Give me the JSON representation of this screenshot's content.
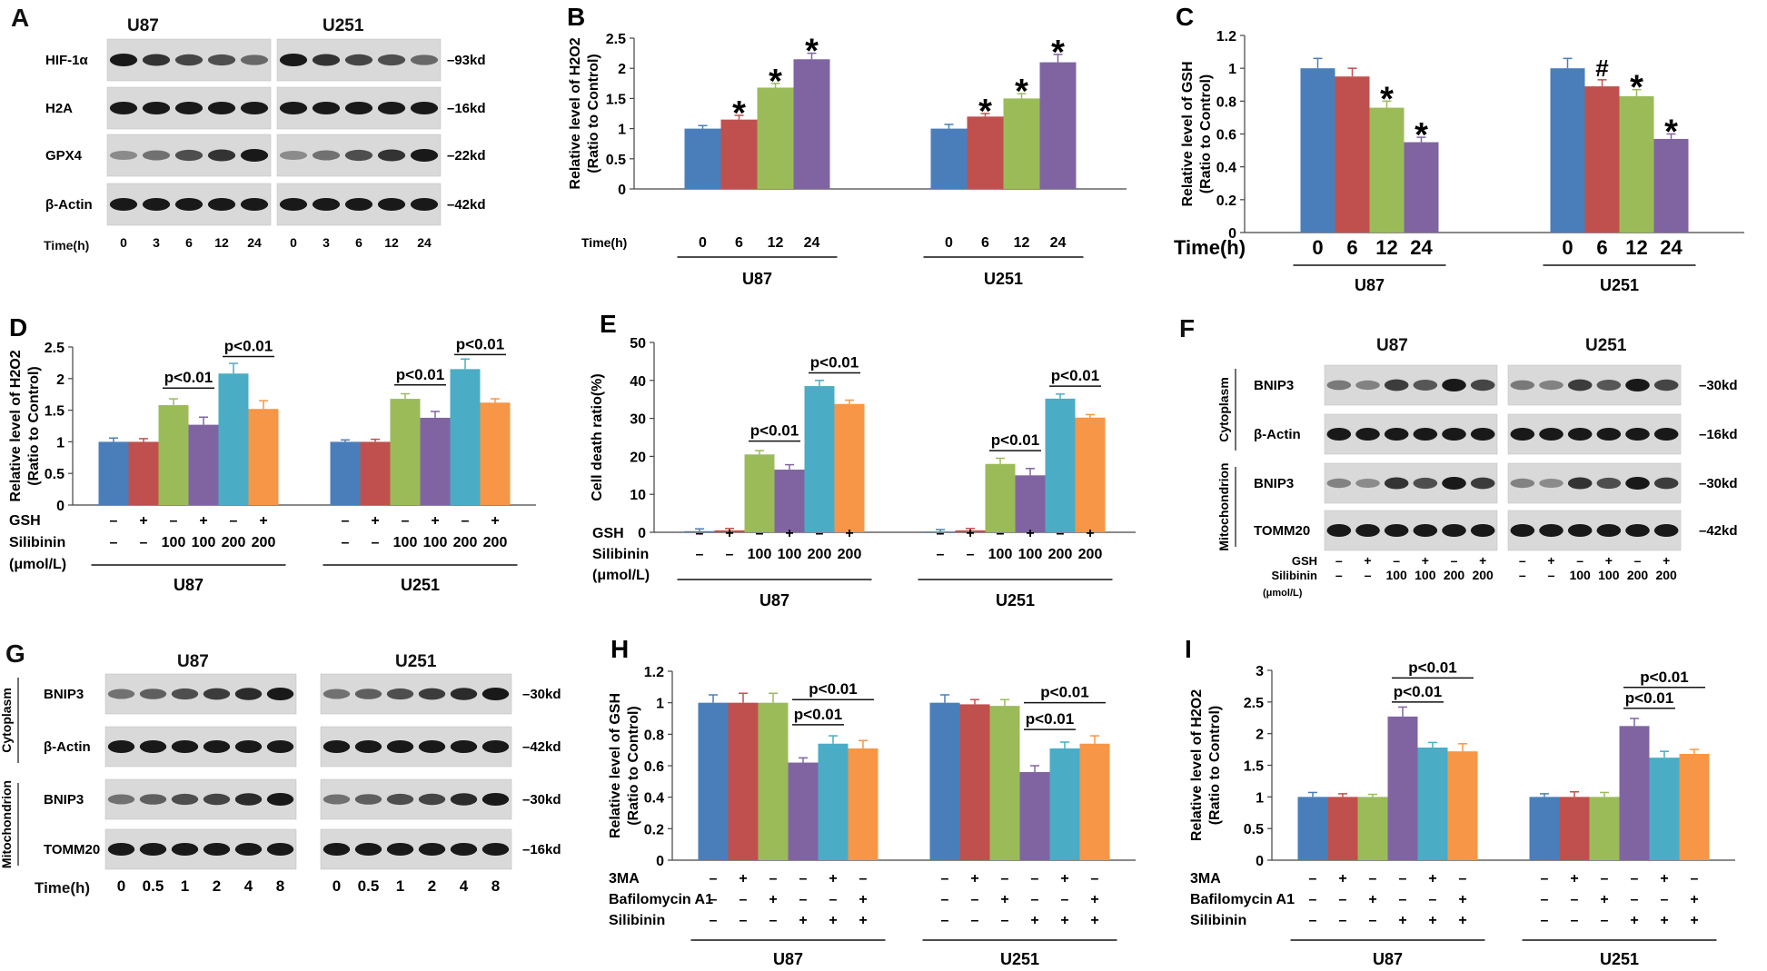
{
  "colors": [
    "#4a7ebb",
    "#c0504d",
    "#9bbb59",
    "#8064a2",
    "#4bacc6",
    "#f79646"
  ],
  "panels": {
    "A": {
      "label": "A",
      "groups": [
        "U87",
        "U251"
      ],
      "rows": [
        {
          "name": "HIF-1α",
          "kd": "93kd",
          "trend": [
            1.0,
            0.85,
            0.75,
            0.7,
            0.55
          ]
        },
        {
          "name": "H2A",
          "kd": "16kd",
          "trend": [
            1,
            1,
            1,
            1,
            1
          ]
        },
        {
          "name": "GPX4",
          "kd": "22kd",
          "trend": [
            0.35,
            0.5,
            0.7,
            0.85,
            1.0
          ]
        },
        {
          "name": "β-Actin",
          "kd": "42kd",
          "trend": [
            1,
            1,
            1,
            1,
            1
          ]
        }
      ],
      "time_label": "Time(h)",
      "times": [
        "0",
        "3",
        "6",
        "12",
        "24"
      ]
    },
    "F": {
      "label": "F",
      "groups": [
        "U87",
        "U251"
      ],
      "section_labels": [
        "Cytoplasm",
        "Mitochondrion"
      ],
      "rows": [
        {
          "name": "BNIP3",
          "kd": "30kd",
          "trend": [
            0.45,
            0.4,
            0.8,
            0.65,
            1.0,
            0.75
          ]
        },
        {
          "name": "β-Actin",
          "kd": "16kd",
          "trend": [
            1,
            1,
            1,
            1,
            1,
            1
          ]
        },
        {
          "name": "BNIP3",
          "kd": "30kd",
          "trend": [
            0.4,
            0.35,
            0.85,
            0.7,
            1.0,
            0.8
          ]
        },
        {
          "name": "TOMM20",
          "kd": "42kd",
          "trend": [
            1,
            1,
            1,
            1,
            1,
            1
          ]
        }
      ],
      "cond_rows": [
        {
          "name": "GSH",
          "values": [
            "–",
            "+",
            "–",
            "+",
            "–",
            "+"
          ]
        },
        {
          "name": "Silibinin",
          "values": [
            "–",
            "–",
            "100",
            "100",
            "200",
            "200"
          ]
        }
      ],
      "unit": "(μmol/L)"
    },
    "G": {
      "label": "G",
      "groups": [
        "U87",
        "U251"
      ],
      "section_labels": [
        "Cytoplasm",
        "Mitochondrion"
      ],
      "rows": [
        {
          "name": "BNIP3",
          "kd": "30kd",
          "trend": [
            0.5,
            0.6,
            0.7,
            0.8,
            0.9,
            1.0
          ]
        },
        {
          "name": "β-Actin",
          "kd": "42kd",
          "trend": [
            1,
            1,
            1,
            1,
            1,
            1
          ]
        },
        {
          "name": "BNIP3",
          "kd": "30kd",
          "trend": [
            0.5,
            0.6,
            0.7,
            0.75,
            0.9,
            1.0
          ]
        },
        {
          "name": "TOMM20",
          "kd": "16kd",
          "trend": [
            1,
            1,
            1,
            1,
            1,
            1
          ]
        }
      ],
      "time_label": "Time(h)",
      "times": [
        "0",
        "0.5",
        "1",
        "2",
        "4",
        "8"
      ]
    }
  },
  "chart_data": [
    {
      "id": "B",
      "type": "bar",
      "label": "B",
      "ylabel": [
        "Relative level of H2O2",
        "(Ratio to Control)"
      ],
      "ylim": [
        0,
        2.5
      ],
      "yticks": [
        "0",
        "0.5",
        "1",
        "1.5",
        "2",
        "2.5"
      ],
      "groups": [
        {
          "name": "U87",
          "values": [
            1.0,
            1.15,
            1.68,
            2.15
          ],
          "errors": [
            0.05,
            0.07,
            0.07,
            0.1
          ],
          "marks": [
            "",
            "*",
            "*",
            "*"
          ]
        },
        {
          "name": "U251",
          "values": [
            1.0,
            1.2,
            1.5,
            2.1
          ],
          "errors": [
            0.07,
            0.05,
            0.08,
            0.13
          ],
          "marks": [
            "",
            "*",
            "*",
            "*"
          ]
        }
      ],
      "cond_rows": [
        {
          "name": "Time(h)",
          "values": [
            "0",
            "6",
            "12",
            "24"
          ]
        }
      ],
      "brackets": []
    },
    {
      "id": "C",
      "type": "bar",
      "label": "C",
      "ylabel": [
        "Relative level of GSH",
        "(Ratio to Control)"
      ],
      "ylim": [
        0,
        1.2
      ],
      "yticks": [
        "0",
        "0.2",
        "0.4",
        "0.6",
        "0.8",
        "1",
        "1.2"
      ],
      "groups": [
        {
          "name": "U87",
          "values": [
            1.0,
            0.95,
            0.76,
            0.55
          ],
          "errors": [
            0.06,
            0.05,
            0.04,
            0.03
          ],
          "marks": [
            "",
            "",
            "*",
            "*"
          ]
        },
        {
          "name": "U251",
          "values": [
            1.0,
            0.89,
            0.83,
            0.57
          ],
          "errors": [
            0.06,
            0.04,
            0.04,
            0.03
          ],
          "marks": [
            "",
            "#",
            "*",
            "*"
          ]
        }
      ],
      "cond_rows": [
        {
          "name": "Time(h)",
          "values": [
            "0",
            "6",
            "12",
            "24"
          ]
        }
      ],
      "brackets": []
    },
    {
      "id": "D",
      "type": "bar",
      "label": "D",
      "ylabel": [
        "Relative level of H2O2",
        "(Ratio to Control)"
      ],
      "ylim": [
        0,
        2.5
      ],
      "yticks": [
        "0",
        "0.5",
        "1",
        "1.5",
        "2",
        "2.5"
      ],
      "groups": [
        {
          "name": "U87",
          "values": [
            1.0,
            1.0,
            1.58,
            1.27,
            2.08,
            1.52
          ],
          "errors": [
            0.06,
            0.05,
            0.1,
            0.12,
            0.16,
            0.13
          ],
          "marks": [
            "",
            "",
            "",
            "",
            "",
            ""
          ]
        },
        {
          "name": "U251",
          "values": [
            1.0,
            1.0,
            1.68,
            1.38,
            2.15,
            1.62
          ],
          "errors": [
            0.03,
            0.04,
            0.08,
            0.1,
            0.16,
            0.06
          ],
          "marks": [
            "",
            "",
            "",
            "",
            "",
            ""
          ]
        }
      ],
      "cond_rows": [
        {
          "name": "GSH",
          "values": [
            "–",
            "+",
            "–",
            "+",
            "–",
            "+"
          ]
        },
        {
          "name": "Silibinin",
          "values": [
            "–",
            "–",
            "100",
            "100",
            "200",
            "200"
          ]
        }
      ],
      "unit": "(μmol/L)",
      "brackets": [
        {
          "group": 0,
          "from": 2,
          "to": 3,
          "level": 1.85,
          "text": "p<0.01"
        },
        {
          "group": 0,
          "from": 4,
          "to": 5,
          "level": 2.35,
          "text": "p<0.01"
        },
        {
          "group": 1,
          "from": 2,
          "to": 3,
          "level": 1.9,
          "text": "p<0.01"
        },
        {
          "group": 1,
          "from": 4,
          "to": 5,
          "level": 2.38,
          "text": "p<0.01"
        }
      ]
    },
    {
      "id": "E",
      "type": "bar",
      "label": "E",
      "ylabel": [
        "Cell death ratio(%)"
      ],
      "ylim": [
        0,
        50
      ],
      "yticks": [
        "0",
        "10",
        "20",
        "30",
        "40",
        "50"
      ],
      "groups": [
        {
          "name": "U87",
          "values": [
            0.3,
            0.5,
            20.5,
            16.5,
            38.5,
            33.8
          ],
          "errors": [
            0.6,
            0.5,
            1.0,
            1.3,
            1.5,
            1.0
          ],
          "marks": [
            "",
            "",
            "",
            "",
            "",
            ""
          ]
        },
        {
          "name": "U251",
          "values": [
            0.2,
            0.5,
            18.0,
            15.0,
            35.2,
            30.2
          ],
          "errors": [
            0.5,
            0.5,
            1.5,
            1.8,
            1.2,
            0.8
          ],
          "marks": [
            "",
            "",
            "",
            "",
            "",
            ""
          ]
        }
      ],
      "cond_rows": [
        {
          "name": "GSH",
          "values": [
            "–",
            "+",
            "–",
            "+",
            "–",
            "+"
          ]
        },
        {
          "name": "Silibinin",
          "values": [
            "–",
            "–",
            "100",
            "100",
            "200",
            "200"
          ]
        }
      ],
      "unit": "(μmol/L)",
      "brackets": [
        {
          "group": 0,
          "from": 2,
          "to": 3,
          "level": 24,
          "text": "p<0.01"
        },
        {
          "group": 0,
          "from": 4,
          "to": 5,
          "level": 42,
          "text": "p<0.01"
        },
        {
          "group": 1,
          "from": 2,
          "to": 3,
          "level": 21.5,
          "text": "p<0.01"
        },
        {
          "group": 1,
          "from": 4,
          "to": 5,
          "level": 38.5,
          "text": "p<0.01"
        }
      ]
    },
    {
      "id": "H",
      "type": "bar",
      "label": "H",
      "ylabel": [
        "Relative level of GSH",
        "(Ratio to Control)"
      ],
      "ylim": [
        0,
        1.2
      ],
      "yticks": [
        "0",
        "0.2",
        "0.4",
        "0.6",
        "0.8",
        "1",
        "1.2"
      ],
      "groups": [
        {
          "name": "U87",
          "values": [
            1.0,
            1.0,
            1.0,
            0.62,
            0.74,
            0.71
          ],
          "errors": [
            0.05,
            0.06,
            0.06,
            0.03,
            0.05,
            0.05
          ],
          "marks": [
            "",
            "",
            "",
            "",
            "",
            ""
          ]
        },
        {
          "name": "U251",
          "values": [
            1.0,
            0.99,
            0.98,
            0.56,
            0.71,
            0.74
          ],
          "errors": [
            0.05,
            0.03,
            0.04,
            0.04,
            0.04,
            0.05
          ],
          "marks": [
            "",
            "",
            "",
            "",
            "",
            ""
          ]
        }
      ],
      "cond_rows": [
        {
          "name": "3MA",
          "values": [
            "–",
            "+",
            "–",
            "–",
            "+",
            "–"
          ]
        },
        {
          "name": "Bafilomycin A1",
          "values": [
            "–",
            "–",
            "+",
            "–",
            "–",
            "+"
          ]
        },
        {
          "name": "Silibinin",
          "values": [
            "–",
            "–",
            "–",
            "+",
            "+",
            "+"
          ]
        }
      ],
      "brackets": [
        {
          "group": 0,
          "from": 3,
          "to": 4,
          "level": 0.86,
          "text": "p<0.01"
        },
        {
          "group": 0,
          "from": 3,
          "to": 5,
          "level": 1.02,
          "text": "p<0.01"
        },
        {
          "group": 1,
          "from": 3,
          "to": 4,
          "level": 0.83,
          "text": "p<0.01"
        },
        {
          "group": 1,
          "from": 3,
          "to": 5,
          "level": 1.0,
          "text": "p<0.01"
        }
      ]
    },
    {
      "id": "I",
      "type": "bar",
      "label": "I",
      "ylabel": [
        "Relative level of H2O2",
        "(Ratio to Control)"
      ],
      "ylim": [
        0,
        3
      ],
      "yticks": [
        "0",
        "0.5",
        "1",
        "1.5",
        "2",
        "2.5",
        "3"
      ],
      "groups": [
        {
          "name": "U87",
          "values": [
            1.0,
            1.0,
            1.0,
            2.27,
            1.78,
            1.72
          ],
          "errors": [
            0.07,
            0.05,
            0.04,
            0.15,
            0.08,
            0.12
          ],
          "marks": [
            "",
            "",
            "",
            "",
            "",
            ""
          ]
        },
        {
          "name": "U251",
          "values": [
            1.0,
            1.0,
            1.0,
            2.12,
            1.62,
            1.68
          ],
          "errors": [
            0.05,
            0.08,
            0.07,
            0.12,
            0.1,
            0.07
          ],
          "marks": [
            "",
            "",
            "",
            "",
            "",
            ""
          ]
        }
      ],
      "cond_rows": [
        {
          "name": "3MA",
          "values": [
            "–",
            "+",
            "–",
            "–",
            "+",
            "–"
          ]
        },
        {
          "name": "Bafilomycin A1",
          "values": [
            "–",
            "–",
            "+",
            "–",
            "–",
            "+"
          ]
        },
        {
          "name": "Silibinin",
          "values": [
            "–",
            "–",
            "–",
            "+",
            "+",
            "+"
          ]
        }
      ],
      "brackets": [
        {
          "group": 0,
          "from": 3,
          "to": 4,
          "level": 2.5,
          "text": "p<0.01"
        },
        {
          "group": 0,
          "from": 3,
          "to": 5,
          "level": 2.88,
          "text": "p<0.01"
        },
        {
          "group": 1,
          "from": 3,
          "to": 4,
          "level": 2.4,
          "text": "p<0.01"
        },
        {
          "group": 1,
          "from": 3,
          "to": 5,
          "level": 2.73,
          "text": "p<0.01"
        }
      ]
    }
  ]
}
